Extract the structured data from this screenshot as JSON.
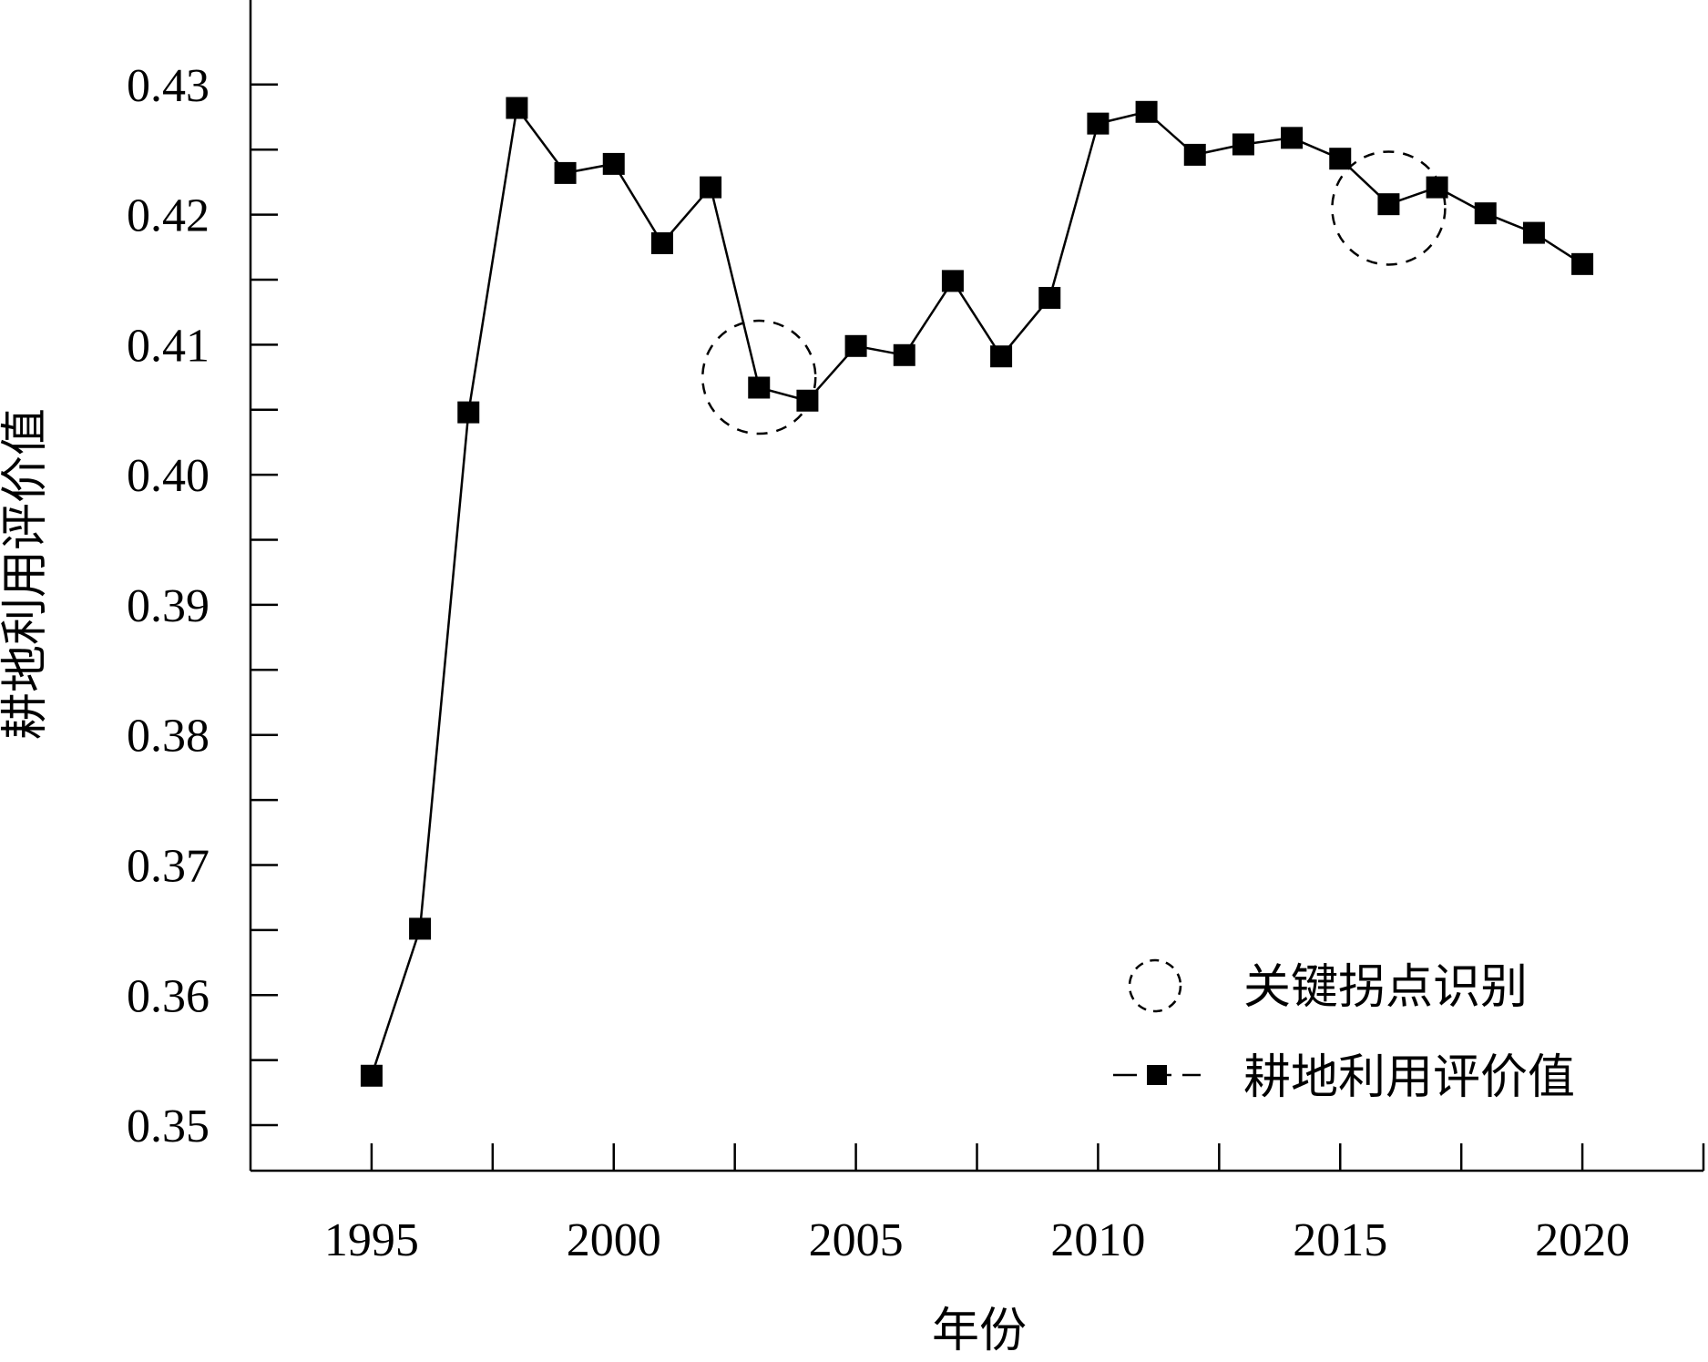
{
  "chart_data": {
    "type": "line",
    "xlabel": "年份",
    "ylabel": "耕地利用评价值",
    "xlim": [
      1992.5,
      2022.5
    ],
    "ylim": [
      0.3465,
      0.4365
    ],
    "x_ticks": [
      1995,
      1997.5,
      2000,
      2002.5,
      2005,
      2007.5,
      2010,
      2012.5,
      2015,
      2017.5,
      2020,
      2022.5
    ],
    "x_tick_labels": [
      "1995",
      "2000",
      "2005",
      "2010",
      "2015",
      "2020"
    ],
    "x_tick_label_values": [
      1995,
      2000,
      2005,
      2010,
      2015,
      2020
    ],
    "y_ticks": [
      0.35,
      0.355,
      0.36,
      0.365,
      0.37,
      0.375,
      0.38,
      0.385,
      0.39,
      0.395,
      0.4,
      0.405,
      0.41,
      0.415,
      0.42,
      0.425,
      0.43
    ],
    "y_tick_labels": [
      "0.35",
      "0.36",
      "0.37",
      "0.38",
      "0.39",
      "0.40",
      "0.41",
      "0.42",
      "0.43"
    ],
    "y_tick_label_values": [
      0.35,
      0.36,
      0.37,
      0.38,
      0.39,
      0.4,
      0.41,
      0.42,
      0.43
    ],
    "series": [
      {
        "name": "耕地利用评价值",
        "marker": "square",
        "color": "#000000",
        "x": [
          1995,
          1996,
          1997,
          1998,
          1999,
          2000,
          2001,
          2002,
          2003,
          2004,
          2005,
          2006,
          2007,
          2008,
          2009,
          2010,
          2011,
          2012,
          2013,
          2014,
          2015,
          2016,
          2017,
          2018,
          2019,
          2020
        ],
        "y": [
          0.3538,
          0.3651,
          0.4048,
          0.4282,
          0.4232,
          0.4239,
          0.4178,
          0.4221,
          0.4067,
          0.4057,
          0.4099,
          0.4092,
          0.4149,
          0.4091,
          0.4136,
          0.427,
          0.4279,
          0.4246,
          0.4254,
          0.4259,
          0.4243,
          0.4208,
          0.4221,
          0.4201,
          0.4186,
          0.4162
        ]
      }
    ],
    "annotations": [
      {
        "label": "关键拐点识别",
        "shape": "dashed-circle",
        "x": 2003.0,
        "y": 0.4075
      },
      {
        "label": "关键拐点识别",
        "shape": "dashed-circle",
        "x": 2016.0,
        "y": 0.4205
      }
    ],
    "legend": {
      "placement": "bottom-right",
      "entries": [
        {
          "label": "关键拐点识别",
          "symbol": "dashed-circle"
        },
        {
          "label": "耕地利用评价值",
          "symbol": "line-square"
        }
      ]
    },
    "grid": false
  }
}
